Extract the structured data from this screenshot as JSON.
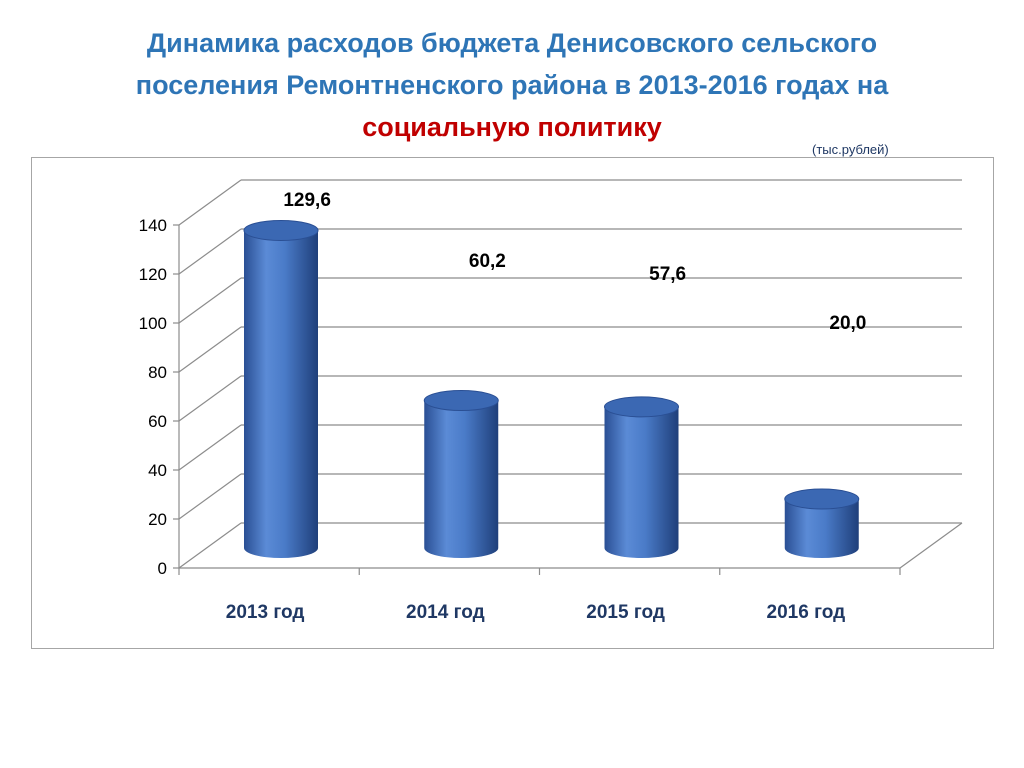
{
  "title": {
    "line1": "Динамика расходов бюджета Денисовского сельского",
    "line2": "поселения Ремонтненского района в  2013-2016 годах на",
    "line3": "социальную политику"
  },
  "units_note": "(тыс.рублей)",
  "colors": {
    "title": "#2e75b6",
    "accent": "#c00000",
    "bar": "#4472c4",
    "bar_dark": "#1f3f7a",
    "category_text": "#1f3864"
  },
  "chart_data": {
    "type": "bar",
    "style": "3d-cylinder",
    "categories": [
      "2013 год",
      "2014 год",
      "2015 год",
      "2016 год"
    ],
    "values": [
      129.6,
      60.2,
      57.6,
      20.0
    ],
    "data_labels": [
      "129,6",
      "60,2",
      "57,6",
      "20,0"
    ],
    "ylim": [
      0,
      140
    ],
    "yticks": [
      0,
      20,
      40,
      60,
      80,
      100,
      120,
      140
    ],
    "grid": true,
    "legend": "none"
  }
}
